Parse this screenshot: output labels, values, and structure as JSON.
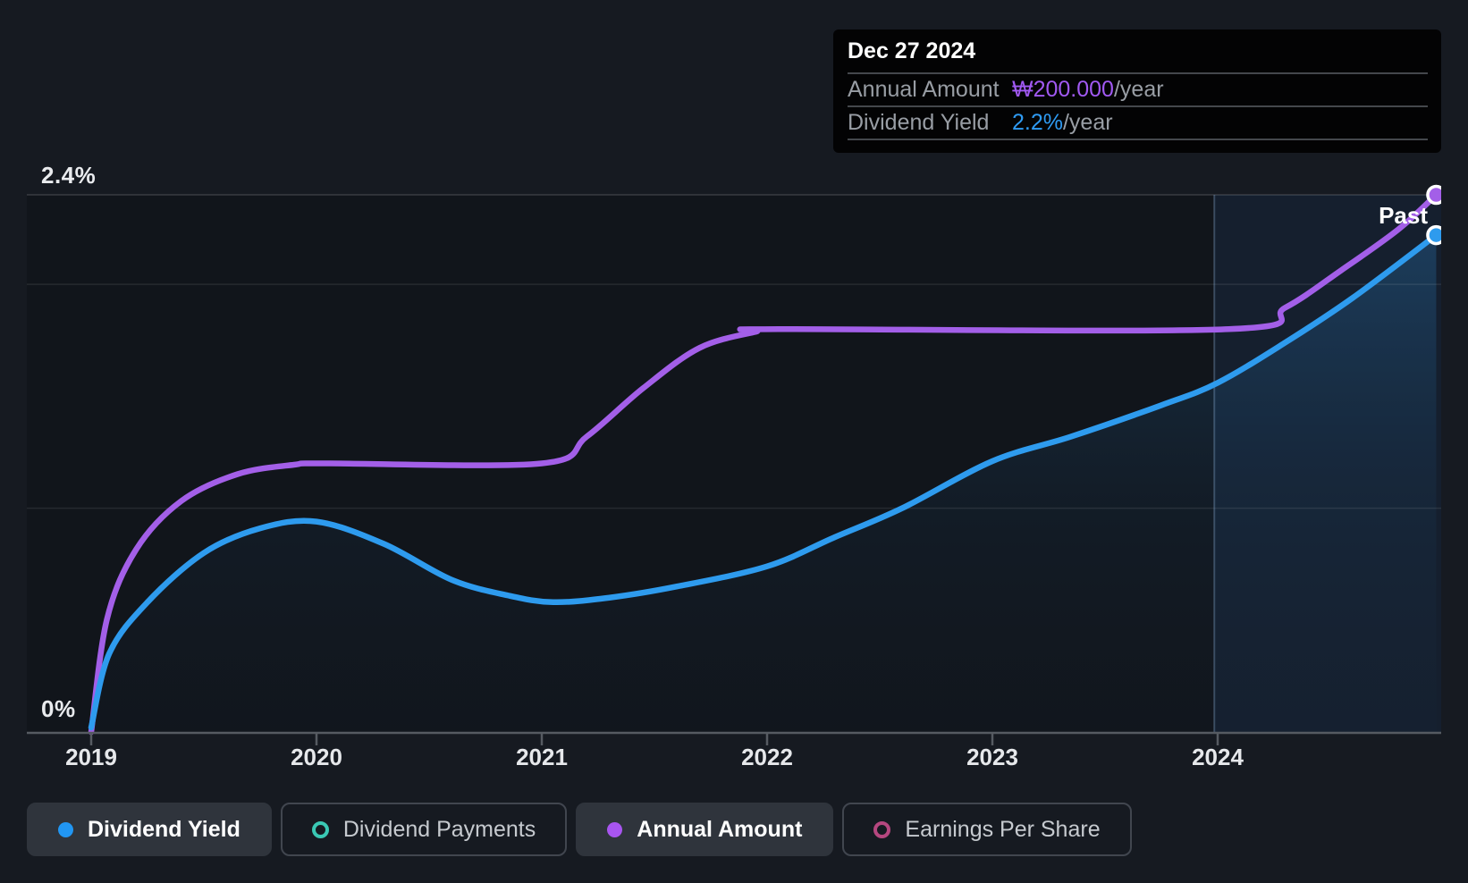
{
  "page": {
    "background": "#161A21"
  },
  "tooltip": {
    "date": "Dec 27 2024",
    "rows": [
      {
        "label": "Annual Amount",
        "value": "₩200.000",
        "unit": "/year",
        "value_color": "#A159F2"
      },
      {
        "label": "Dividend Yield",
        "value": "2.2%",
        "unit": "/year",
        "value_color": "#2F9BF3"
      }
    ]
  },
  "past_label": "Past",
  "y_axis": {
    "top_label": "2.4%",
    "zero_label": "0%"
  },
  "x_axis": {
    "labels": [
      "2019",
      "2020",
      "2021",
      "2022",
      "2023",
      "2024"
    ]
  },
  "legend": {
    "items": [
      {
        "label": "Dividend Yield",
        "marker": "dot",
        "color": "#2196F3",
        "active": true
      },
      {
        "label": "Dividend Payments",
        "marker": "ring",
        "color": "#3AC8B4",
        "active": false
      },
      {
        "label": "Annual Amount",
        "marker": "dot",
        "color": "#A855F0",
        "active": true
      },
      {
        "label": "Earnings Per Share",
        "marker": "ring",
        "color": "#B5477F",
        "active": false
      }
    ]
  },
  "chart_data": {
    "type": "line",
    "title": "Dividend history: yield and annual amount over time",
    "x_range": [
      2019,
      2025.0
    ],
    "x_tick_years": [
      2019,
      2020,
      2021,
      2022,
      2023,
      2024
    ],
    "y_left": {
      "label": "Dividend Yield",
      "unit": "%",
      "range": [
        0,
        2.43
      ],
      "gridlines": [
        2.4,
        2.0,
        1.0
      ],
      "labeled_ticks": [
        2.4,
        0
      ]
    },
    "y_right_hidden": {
      "label": "Annual Amount",
      "unit": "₩",
      "range": [
        0,
        200
      ]
    },
    "past_region_start": 2023.985,
    "tooltip_point": {
      "date": "Dec 27 2024",
      "annual_amount_krw": 200.0,
      "dividend_yield_pct": 2.2
    },
    "grid": "horizontal-only",
    "legend_position": "bottom-left",
    "series": [
      {
        "name": "Dividend Yield",
        "axis": "percent",
        "color": "#2E9BEE",
        "end_marker": true,
        "points": [
          [
            2019.0,
            0.02
          ],
          [
            2019.08,
            0.35
          ],
          [
            2019.25,
            0.58
          ],
          [
            2019.5,
            0.8
          ],
          [
            2019.75,
            0.91
          ],
          [
            2020.0,
            0.94
          ],
          [
            2020.3,
            0.84
          ],
          [
            2020.6,
            0.68
          ],
          [
            2020.85,
            0.61
          ],
          [
            2021.05,
            0.58
          ],
          [
            2021.3,
            0.6
          ],
          [
            2021.6,
            0.65
          ],
          [
            2022.0,
            0.74
          ],
          [
            2022.3,
            0.87
          ],
          [
            2022.6,
            1.0
          ],
          [
            2023.0,
            1.21
          ],
          [
            2023.35,
            1.32
          ],
          [
            2023.75,
            1.46
          ],
          [
            2024.0,
            1.56
          ],
          [
            2024.3,
            1.74
          ],
          [
            2024.6,
            1.94
          ],
          [
            2024.97,
            2.22
          ]
        ]
      },
      {
        "name": "Annual Amount",
        "axis": "krw",
        "color": "#A35FE8",
        "end_marker": true,
        "points": [
          [
            2019.0,
            0
          ],
          [
            2019.07,
            42
          ],
          [
            2019.2,
            68
          ],
          [
            2019.4,
            86
          ],
          [
            2019.65,
            96
          ],
          [
            2019.9,
            99.5
          ],
          [
            2020.05,
            100
          ],
          [
            2021.0,
            100
          ],
          [
            2021.2,
            110
          ],
          [
            2021.45,
            128
          ],
          [
            2021.7,
            143
          ],
          [
            2021.95,
            149
          ],
          [
            2022.05,
            150
          ],
          [
            2024.05,
            150
          ],
          [
            2024.3,
            158
          ],
          [
            2024.55,
            172
          ],
          [
            2024.8,
            187
          ],
          [
            2024.97,
            200
          ]
        ]
      }
    ],
    "area_fill_series": "Dividend Yield"
  }
}
